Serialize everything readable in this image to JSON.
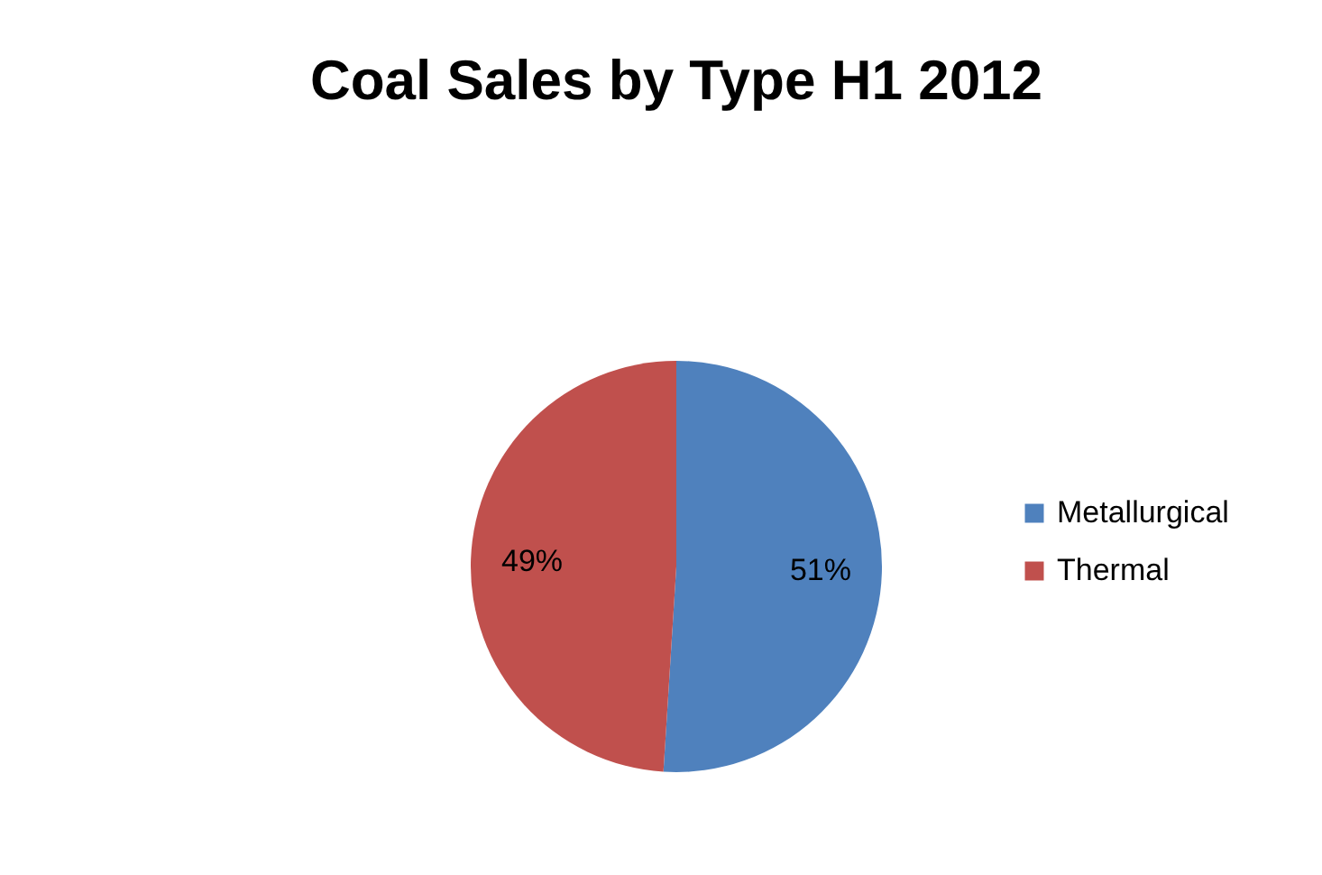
{
  "chart_data": {
    "type": "pie",
    "title": "Coal Sales by Type H1 2012",
    "categories": [
      "Metallurgical",
      "Thermal"
    ],
    "values": [
      51,
      49
    ],
    "colors": [
      "#4f81bd",
      "#c0504d"
    ],
    "value_labels": [
      "51%",
      "49%"
    ],
    "legend": "right"
  }
}
